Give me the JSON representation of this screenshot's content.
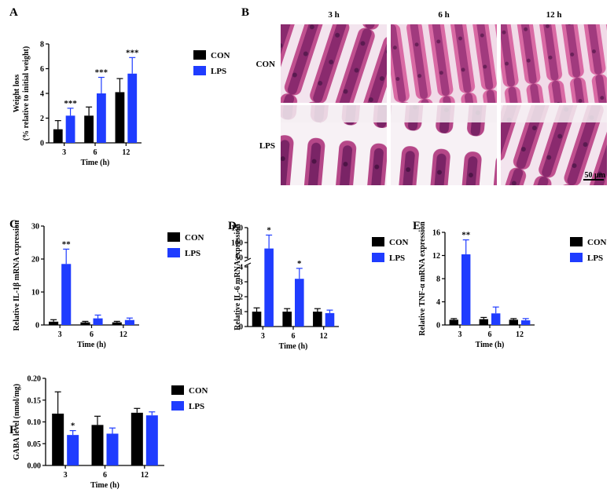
{
  "colors": {
    "con": "#000000",
    "lps": "#1f3cff",
    "tissue_dark": "#8a2a6e",
    "tissue_light": "#e8a6c8",
    "lumen": "#f6eef4"
  },
  "chart_data": [
    {
      "id": "A",
      "type": "bar",
      "panel_label": "A",
      "categories": [
        "3",
        "6",
        "12"
      ],
      "xlabel": "Time (h)",
      "ylabel": [
        "Weight loss",
        "(% relative to initial weight)"
      ],
      "ylim": [
        0,
        8
      ],
      "yticks": [
        "0",
        "2",
        "4",
        "6",
        "8"
      ],
      "series": [
        {
          "name": "CON",
          "values": [
            1.1,
            2.2,
            4.1
          ],
          "errors": [
            0.7,
            0.7,
            1.1
          ]
        },
        {
          "name": "LPS",
          "values": [
            2.2,
            4.0,
            5.6
          ],
          "errors": [
            0.6,
            1.3,
            1.3
          ]
        }
      ],
      "significance": [
        {
          "series": 1,
          "index": 0,
          "text": "***"
        },
        {
          "series": 1,
          "index": 1,
          "text": "***"
        },
        {
          "series": 1,
          "index": 2,
          "text": "***"
        }
      ],
      "legend": "right"
    },
    {
      "id": "C",
      "type": "bar",
      "panel_label": "C",
      "categories": [
        "3",
        "6",
        "12"
      ],
      "xlabel": "Time (h)",
      "ylabel": [
        "Relative IL-1β mRNA expression"
      ],
      "ylim": [
        0,
        30
      ],
      "yticks": [
        "0",
        "10",
        "20",
        "30"
      ],
      "series": [
        {
          "name": "CON",
          "values": [
            1.0,
            0.8,
            0.8
          ],
          "errors": [
            0.6,
            0.3,
            0.3
          ]
        },
        {
          "name": "LPS",
          "values": [
            18.5,
            2.0,
            1.5
          ],
          "errors": [
            4.5,
            1.0,
            0.6
          ]
        }
      ],
      "significance": [
        {
          "series": 1,
          "index": 0,
          "text": "**"
        }
      ],
      "legend": "right"
    },
    {
      "id": "D",
      "type": "bar",
      "panel_label": "D",
      "categories": [
        "3",
        "6",
        "12"
      ],
      "xlabel": "Time (h)",
      "ylabel": [
        "Relative IL-6 mRNA expression"
      ],
      "broken_axis": {
        "lower": [
          0,
          4
        ],
        "upper": [
          50,
          150
        ]
      },
      "yticks_lower": [
        "0",
        "1",
        "2",
        "3",
        "4"
      ],
      "yticks_upper": [
        "50",
        "100",
        "150"
      ],
      "series": [
        {
          "name": "CON",
          "values": [
            1.0,
            1.0,
            1.0
          ],
          "errors": [
            0.25,
            0.2,
            0.2
          ]
        },
        {
          "name": "LPS",
          "values": [
            80,
            3.2,
            0.9
          ],
          "errors": [
            45,
            0.7,
            0.2
          ]
        }
      ],
      "significance": [
        {
          "series": 1,
          "index": 0,
          "text": "*"
        },
        {
          "series": 1,
          "index": 1,
          "text": "*"
        }
      ],
      "legend": "right"
    },
    {
      "id": "E",
      "type": "bar",
      "panel_label": "E",
      "categories": [
        "3",
        "6",
        "12"
      ],
      "xlabel": "Time (h)",
      "ylabel": [
        "Relative TNF-α mRNA expression"
      ],
      "ylim": [
        0,
        16
      ],
      "yticks": [
        "0",
        "4",
        "8",
        "12",
        "16"
      ],
      "series": [
        {
          "name": "CON",
          "values": [
            0.9,
            1.0,
            0.9
          ],
          "errors": [
            0.2,
            0.3,
            0.2
          ]
        },
        {
          "name": "LPS",
          "values": [
            12.2,
            2.0,
            0.8
          ],
          "errors": [
            2.5,
            1.1,
            0.3
          ]
        }
      ],
      "significance": [
        {
          "series": 1,
          "index": 0,
          "text": "**"
        }
      ],
      "legend": "right"
    },
    {
      "id": "F",
      "type": "bar",
      "panel_label": "F",
      "categories": [
        "3",
        "6",
        "12"
      ],
      "xlabel": "Time (h)",
      "ylabel": [
        "GABA level (nmol/mg)"
      ],
      "ylim": [
        0,
        0.2
      ],
      "yticks": [
        "0.00",
        "0.05",
        "0.10",
        "0.15",
        "0.20"
      ],
      "series": [
        {
          "name": "CON",
          "values": [
            0.119,
            0.093,
            0.121
          ],
          "errors": [
            0.05,
            0.02,
            0.01
          ]
        },
        {
          "name": "LPS",
          "values": [
            0.07,
            0.073,
            0.115
          ],
          "errors": [
            0.01,
            0.013,
            0.008
          ]
        }
      ],
      "significance": [
        {
          "series": 1,
          "index": 0,
          "text": "*"
        }
      ],
      "legend": "right"
    }
  ],
  "histology": {
    "panel_label": "B",
    "columns": [
      "3 h",
      "6 h",
      "12 h"
    ],
    "rows": [
      "CON",
      "LPS"
    ],
    "scale_bar": "50 μm"
  }
}
